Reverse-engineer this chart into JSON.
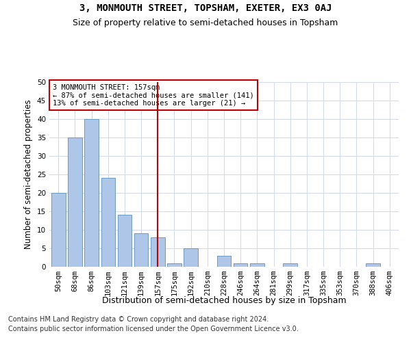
{
  "title": "3, MONMOUTH STREET, TOPSHAM, EXETER, EX3 0AJ",
  "subtitle": "Size of property relative to semi-detached houses in Topsham",
  "xlabel": "Distribution of semi-detached houses by size in Topsham",
  "ylabel": "Number of semi-detached properties",
  "categories": [
    "50sqm",
    "68sqm",
    "86sqm",
    "103sqm",
    "121sqm",
    "139sqm",
    "157sqm",
    "175sqm",
    "192sqm",
    "210sqm",
    "228sqm",
    "246sqm",
    "264sqm",
    "281sqm",
    "299sqm",
    "317sqm",
    "335sqm",
    "353sqm",
    "370sqm",
    "388sqm",
    "406sqm"
  ],
  "values": [
    20,
    35,
    40,
    24,
    14,
    9,
    8,
    1,
    5,
    0,
    3,
    1,
    1,
    0,
    1,
    0,
    0,
    0,
    0,
    1,
    0
  ],
  "bar_color": "#aec6e8",
  "bar_edge_color": "#5a8fc0",
  "highlight_index": 6,
  "highlight_color": "#c00000",
  "annotation_title": "3 MONMOUTH STREET: 157sqm",
  "annotation_line1": "← 87% of semi-detached houses are smaller (141)",
  "annotation_line2": "13% of semi-detached houses are larger (21) →",
  "annotation_box_color": "#c00000",
  "ylim": [
    0,
    50
  ],
  "yticks": [
    0,
    5,
    10,
    15,
    20,
    25,
    30,
    35,
    40,
    45,
    50
  ],
  "footer1": "Contains HM Land Registry data © Crown copyright and database right 2024.",
  "footer2": "Contains public sector information licensed under the Open Government Licence v3.0.",
  "bg_color": "#ffffff",
  "grid_color": "#d0d8e8",
  "title_fontsize": 10,
  "subtitle_fontsize": 9,
  "axis_label_fontsize": 8.5,
  "tick_fontsize": 7.5,
  "footer_fontsize": 7
}
